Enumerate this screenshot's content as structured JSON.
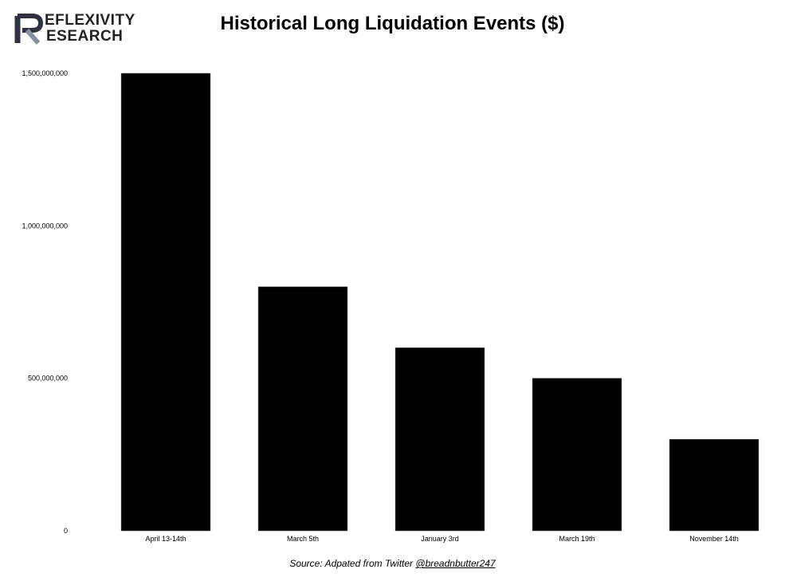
{
  "logo": {
    "line1": "EFLEXIVITY",
    "line2": "ESEARCH",
    "mark": "R-logo-mark"
  },
  "source": {
    "prefix": "Source: Adpated from Twitter ",
    "handle": "@breadnbutter247"
  },
  "colors": {
    "bar": "#000000",
    "background": "#ffffff",
    "logo_mark": "#2e3140",
    "logo_mark_accent": "#8a8fa3"
  },
  "chart_data": {
    "type": "bar",
    "title": "Historical Long Liquidation Events ($)",
    "xlabel": "",
    "ylabel": "",
    "categories": [
      "April 13-14th",
      "March 5th",
      "January 3rd",
      "March 19th",
      "November 14th"
    ],
    "values": [
      1500000000,
      800000000,
      600000000,
      500000000,
      300000000
    ],
    "yticks": [
      0,
      500000000,
      1000000000,
      1500000000
    ],
    "ytick_labels": [
      "0",
      "500,000,000",
      "1,000,000,000",
      "1,500,000,000"
    ],
    "ylim": [
      0,
      1500000000
    ],
    "grid": false,
    "legend": "none"
  }
}
